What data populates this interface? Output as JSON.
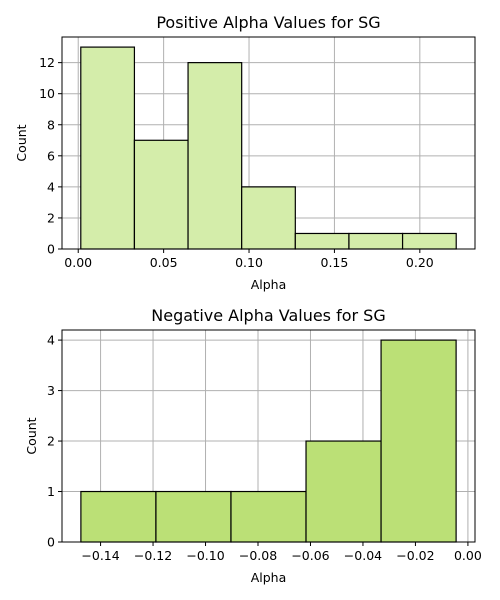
{
  "chart_data": [
    {
      "type": "bar",
      "title": "Positive Alpha Values for SG",
      "xlabel": "Alpha",
      "ylabel": "Count",
      "bar_color": "#d4edaa",
      "bin_edges": [
        0.0015,
        0.0329,
        0.0643,
        0.0957,
        0.1271,
        0.1585,
        0.1899,
        0.2213
      ],
      "values": [
        13,
        7,
        12,
        4,
        1,
        1,
        1
      ],
      "xlim": [
        -0.0095,
        0.2323
      ],
      "ylim": [
        0,
        13.65
      ],
      "xticks": [
        0.0,
        0.05,
        0.1,
        0.15,
        0.2
      ],
      "xtick_labels": [
        "0.00",
        "0.05",
        "0.10",
        "0.15",
        "0.20"
      ],
      "yticks": [
        0,
        2,
        4,
        6,
        8,
        10,
        12
      ],
      "ytick_labels": [
        "0",
        "2",
        "4",
        "6",
        "8",
        "10",
        "12"
      ],
      "grid": true
    },
    {
      "type": "bar",
      "title": "Negative Alpha Values for SG",
      "xlabel": "Alpha",
      "ylabel": "Count",
      "bar_color": "#bbe076",
      "bin_edges": [
        -0.1475,
        -0.1189,
        -0.0903,
        -0.0617,
        -0.0331,
        -0.0045
      ],
      "values": [
        1,
        1,
        1,
        2,
        4
      ],
      "xlim": [
        -0.1547,
        0.0027
      ],
      "ylim": [
        0,
        4.2
      ],
      "xticks": [
        -0.14,
        -0.12,
        -0.1,
        -0.08,
        -0.06,
        -0.04,
        -0.02,
        0.0
      ],
      "xtick_labels": [
        "−0.14",
        "−0.12",
        "−0.10",
        "−0.08",
        "−0.06",
        "−0.04",
        "−0.02",
        "0.00"
      ],
      "yticks": [
        0,
        1,
        2,
        3,
        4
      ],
      "ytick_labels": [
        "0",
        "1",
        "2",
        "3",
        "4"
      ],
      "grid": true
    }
  ]
}
